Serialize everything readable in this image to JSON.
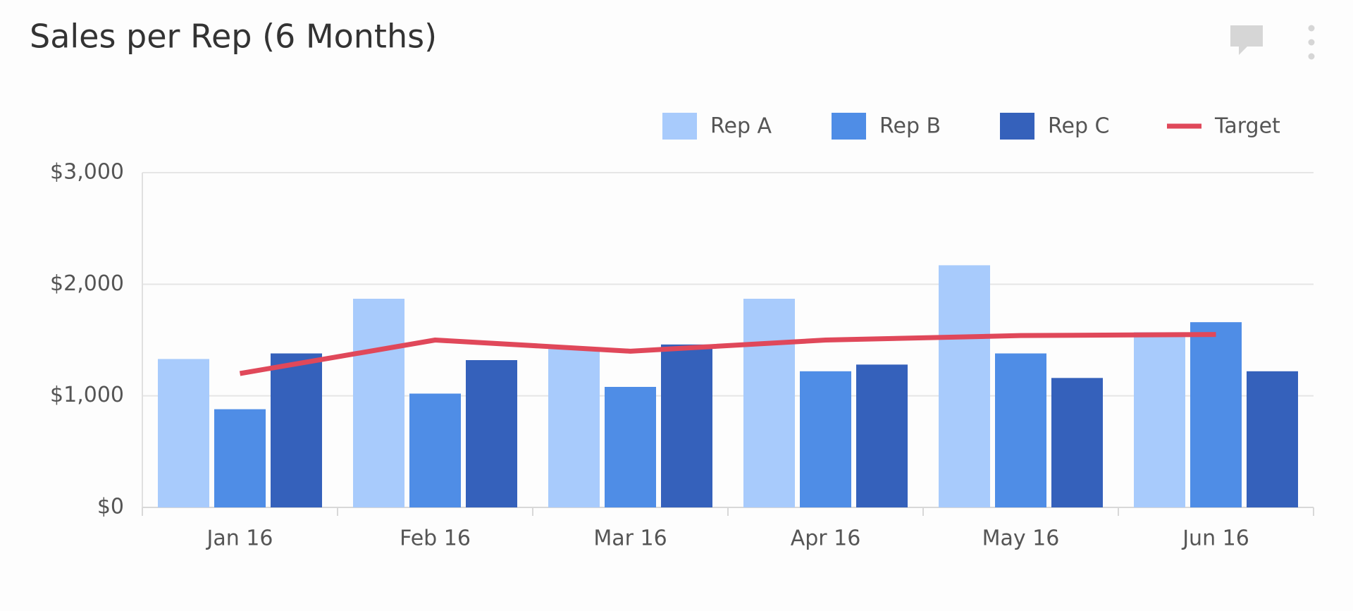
{
  "chart_data": {
    "type": "bar_line",
    "title": "Sales per Rep (6 Months)",
    "categories": [
      "Jan 16",
      "Feb 16",
      "Mar 16",
      "Apr 16",
      "May 16",
      "Jun 16"
    ],
    "series": [
      {
        "name": "Rep A",
        "type": "bar",
        "color": "#a8cbfc",
        "values": [
          1330,
          1870,
          1420,
          1870,
          2170,
          1570
        ]
      },
      {
        "name": "Rep B",
        "type": "bar",
        "color": "#4f8de6",
        "values": [
          880,
          1020,
          1080,
          1220,
          1380,
          1660
        ]
      },
      {
        "name": "Rep C",
        "type": "bar",
        "color": "#3561bb",
        "values": [
          1380,
          1320,
          1460,
          1280,
          1160,
          1220
        ]
      },
      {
        "name": "Target",
        "type": "line",
        "color": "#e0485a",
        "values": [
          1200,
          1500,
          1400,
          1500,
          1540,
          1550
        ]
      }
    ],
    "ylim": [
      0,
      3000
    ],
    "yticks": [
      {
        "value": 0,
        "label": "$0"
      },
      {
        "value": 1000,
        "label": "$1,000"
      },
      {
        "value": 2000,
        "label": "$2,000"
      },
      {
        "value": 3000,
        "label": "$3,000"
      }
    ],
    "grid": true,
    "legend": "top-right"
  }
}
